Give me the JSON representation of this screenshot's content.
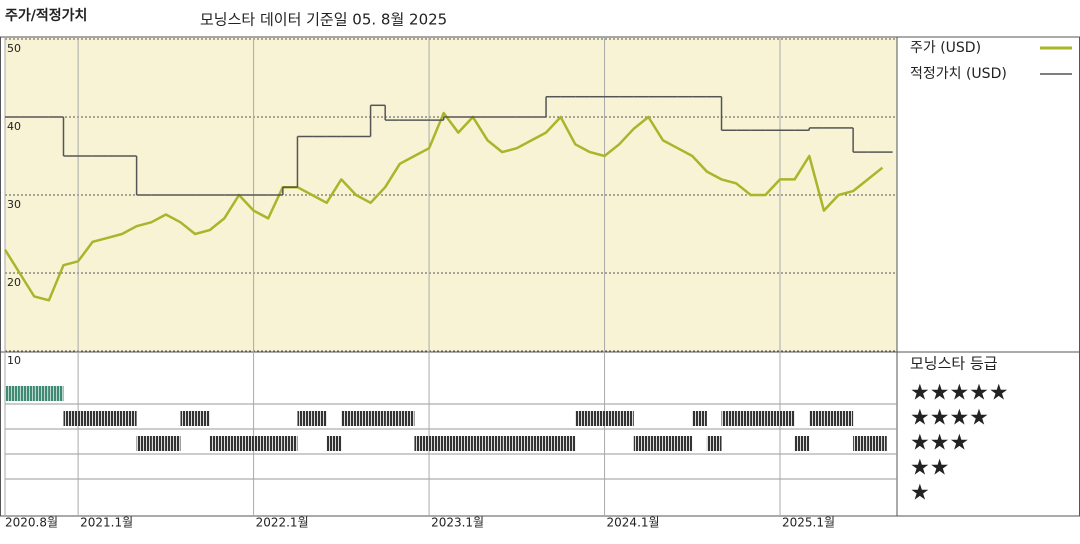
{
  "chart_data": {
    "type": "line",
    "title": "주가/적정가치",
    "subtitle": "모닝스타 데이터 기준일 05. 8월 2025",
    "x": [
      "2020-08",
      "2020-09",
      "2020-10",
      "2020-11",
      "2020-12",
      "2021-01",
      "2021-02",
      "2021-03",
      "2021-04",
      "2021-05",
      "2021-06",
      "2021-07",
      "2021-08",
      "2021-09",
      "2021-10",
      "2021-11",
      "2021-12",
      "2022-01",
      "2022-02",
      "2022-03",
      "2022-04",
      "2022-05",
      "2022-06",
      "2022-07",
      "2022-08",
      "2022-09",
      "2022-10",
      "2022-11",
      "2022-12",
      "2023-01",
      "2023-02",
      "2023-03",
      "2023-04",
      "2023-05",
      "2023-06",
      "2023-07",
      "2023-08",
      "2023-09",
      "2023-10",
      "2023-11",
      "2023-12",
      "2024-01",
      "2024-02",
      "2024-03",
      "2024-04",
      "2024-05",
      "2024-06",
      "2024-07",
      "2024-08",
      "2024-09",
      "2024-10",
      "2024-11",
      "2024-12",
      "2025-01",
      "2025-02",
      "2025-03",
      "2025-04",
      "2025-05",
      "2025-06",
      "2025-07",
      "2025-08"
    ],
    "series": [
      {
        "name": "주가 (USD)",
        "color": "#a9b52a",
        "values": [
          23,
          20,
          17,
          16.5,
          21,
          21.5,
          24,
          24.5,
          25,
          26,
          26.5,
          27.5,
          26.5,
          25,
          25.5,
          27,
          30,
          28,
          27,
          31,
          31,
          30,
          29,
          32,
          30,
          29,
          31,
          34,
          35,
          36,
          40.5,
          38,
          40,
          37,
          35.5,
          36,
          37,
          38,
          40,
          36.5,
          35.5,
          35,
          36.5,
          38.5,
          40,
          37,
          36,
          35,
          33,
          32,
          31.5,
          30,
          30,
          32,
          32,
          35,
          28,
          30,
          30.5,
          32,
          33.5
        ]
      },
      {
        "name": "적정가치 (USD)",
        "color": "#555555",
        "step": true,
        "values": [
          40,
          40,
          40,
          40,
          35,
          35,
          35,
          35,
          35,
          30,
          30,
          30,
          30,
          30,
          30,
          30,
          30,
          30,
          30,
          31,
          37.5,
          37.5,
          37.5,
          37.5,
          37.5,
          41.5,
          39.6,
          39.6,
          39.6,
          39.6,
          40,
          40,
          40,
          40,
          40,
          40,
          40,
          42.6,
          42.6,
          42.6,
          42.6,
          42.6,
          42.6,
          42.6,
          42.6,
          42.6,
          42.6,
          42.6,
          42.6,
          38.3,
          38.3,
          38.3,
          38.3,
          38.3,
          38.3,
          38.6,
          38.6,
          38.6,
          35.5,
          35.5,
          35.5
        ]
      }
    ],
    "xlim": [
      "2020-08",
      "2025-09"
    ],
    "xticks": [
      {
        "value": "2020-08",
        "label": "2020.8월"
      },
      {
        "value": "2021-01",
        "label": "2021.1월"
      },
      {
        "value": "2022-01",
        "label": "2022.1월"
      },
      {
        "value": "2023-01",
        "label": "2023.1월"
      },
      {
        "value": "2024-01",
        "label": "2024.1월"
      },
      {
        "value": "2025-01",
        "label": "2025.1월"
      }
    ],
    "ylim": [
      10,
      50
    ],
    "yticks": [
      10,
      20,
      30,
      40,
      50
    ],
    "grid": true,
    "rating": {
      "title": "모닝스타 등급",
      "levels": [
        {
          "value": 5,
          "label": "★★★★★"
        },
        {
          "value": 4,
          "label": "★★★★"
        },
        {
          "value": 3,
          "label": "★★★"
        },
        {
          "value": 2,
          "label": "★★"
        },
        {
          "value": 1,
          "label": "★"
        }
      ],
      "colors": {
        "top": "#3f8a72",
        "other": "#333333"
      },
      "values": [
        5,
        5,
        5,
        5,
        4,
        4,
        4,
        4,
        4,
        3,
        3,
        3,
        4,
        4,
        3,
        3,
        3,
        3,
        3,
        3,
        4,
        4,
        3,
        4,
        4,
        4,
        4,
        4,
        3,
        3,
        3,
        3,
        3,
        3,
        3,
        3,
        3,
        3,
        3,
        4,
        4,
        4,
        4,
        3,
        3,
        3,
        3,
        4,
        3,
        4,
        4,
        4,
        4,
        4,
        3,
        4,
        4,
        4,
        3,
        3,
        3
      ]
    }
  }
}
